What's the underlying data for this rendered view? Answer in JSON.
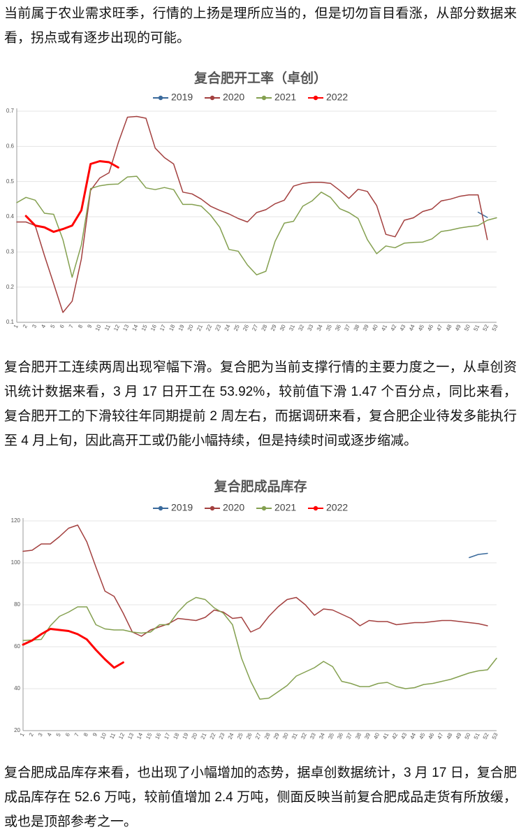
{
  "paragraphs": [
    "当前属于农业需求旺季，行情的上扬是理所应当的，但是切勿盲目看涨，从部分数据来看，拐点或有逐步出现的可能。",
    "复合肥开工连续两周出现窄幅下滑。复合肥为当前支撑行情的主要力度之一，从卓创资讯统计数据来看，3 月 17 日开工在 53.92%，较前值下滑 1.47 个百分点，同比来看，复合肥开工的下滑较往年同期提前 2 周左右，而据调研来看，复合肥企业待发多能执行至 4 月上旬，因此高开工或仍能小幅持续，但是持续时间或逐步缩减。",
    "复合肥成品库存来看，也出现了小幅增加的态势，据卓创数据统计，3 月 17 日，复合肥成品库存在 52.6 万吨，较前值增加 2.4 万吨，侧面反映当前复合肥成品走货有所放缓，或也是顶部参考之一。"
  ],
  "chart_data": [
    {
      "type": "line",
      "title": "复合肥开工率（卓创）",
      "categories": [
        "1",
        "2",
        "3",
        "4",
        "5",
        "6",
        "7",
        "8",
        "9",
        "10",
        "11",
        "12",
        "13",
        "14",
        "15",
        "16",
        "17",
        "18",
        "19",
        "20",
        "21",
        "22",
        "23",
        "24",
        "25",
        "26",
        "27",
        "28",
        "29",
        "30",
        "31",
        "32",
        "33",
        "34",
        "35",
        "36",
        "37",
        "38",
        "39",
        "40",
        "41",
        "42",
        "43",
        "44",
        "45",
        "46",
        "47",
        "48",
        "49",
        "50",
        "51",
        "52",
        "53"
      ],
      "ylim": [
        0.1,
        0.7
      ],
      "yticks": [
        0.1,
        0.2,
        0.3,
        0.4,
        0.5,
        0.6,
        0.7
      ],
      "grid": true,
      "legend": "top",
      "series": [
        {
          "name": "2019",
          "color": "#3a6a9c",
          "values": [
            null,
            null,
            null,
            null,
            null,
            null,
            null,
            null,
            null,
            null,
            null,
            null,
            null,
            null,
            null,
            null,
            null,
            null,
            null,
            null,
            null,
            null,
            null,
            null,
            null,
            null,
            null,
            null,
            null,
            null,
            null,
            null,
            null,
            null,
            null,
            null,
            null,
            null,
            null,
            null,
            null,
            null,
            null,
            null,
            null,
            null,
            null,
            null,
            null,
            null,
            0.413,
            0.398,
            null
          ]
        },
        {
          "name": "2020",
          "color": "#a3403f",
          "values": [
            0.385,
            0.385,
            0.375,
            0.29,
            0.21,
            0.128,
            0.16,
            0.28,
            0.475,
            0.51,
            0.525,
            0.61,
            0.683,
            0.685,
            0.68,
            0.595,
            0.568,
            0.55,
            0.47,
            0.465,
            0.45,
            0.43,
            0.418,
            0.408,
            0.395,
            0.385,
            0.412,
            0.42,
            0.437,
            0.447,
            0.487,
            0.495,
            0.498,
            0.498,
            0.495,
            0.475,
            0.452,
            0.478,
            0.472,
            0.432,
            0.35,
            0.343,
            0.39,
            0.397,
            0.415,
            0.422,
            0.445,
            0.45,
            0.458,
            0.462,
            0.462,
            0.335,
            null
          ]
        },
        {
          "name": "2021",
          "color": "#84a050",
          "values": [
            0.44,
            0.455,
            0.447,
            0.41,
            0.407,
            0.335,
            0.228,
            0.32,
            0.48,
            0.488,
            0.492,
            0.493,
            0.513,
            0.515,
            0.482,
            0.477,
            0.483,
            0.477,
            0.435,
            0.435,
            0.43,
            0.405,
            0.37,
            0.307,
            0.302,
            0.263,
            0.235,
            0.245,
            0.33,
            0.382,
            0.387,
            0.43,
            0.445,
            0.47,
            0.455,
            0.423,
            0.412,
            0.395,
            0.335,
            0.295,
            0.317,
            0.312,
            0.325,
            0.327,
            0.328,
            0.337,
            0.358,
            0.362,
            0.368,
            0.372,
            0.375,
            0.39,
            0.397
          ]
        },
        {
          "name": "2022",
          "color": "#ff0000",
          "values": [
            null,
            0.402,
            0.375,
            0.37,
            0.357,
            0.365,
            0.375,
            0.418,
            0.55,
            0.558,
            0.555,
            0.54,
            null,
            null,
            null,
            null,
            null,
            null,
            null,
            null,
            null,
            null,
            null,
            null,
            null,
            null,
            null,
            null,
            null,
            null,
            null,
            null,
            null,
            null,
            null,
            null,
            null,
            null,
            null,
            null,
            null,
            null,
            null,
            null,
            null,
            null,
            null,
            null,
            null,
            null,
            null,
            null,
            null
          ]
        }
      ]
    },
    {
      "type": "line",
      "title": "复合肥成品库存",
      "categories": [
        "1",
        "2",
        "3",
        "4",
        "5",
        "6",
        "7",
        "8",
        "9",
        "10",
        "11",
        "12",
        "13",
        "14",
        "15",
        "16",
        "17",
        "18",
        "19",
        "20",
        "21",
        "22",
        "23",
        "24",
        "25",
        "26",
        "27",
        "28",
        "29",
        "30",
        "31",
        "32",
        "33",
        "34",
        "35",
        "36",
        "37",
        "38",
        "39",
        "40",
        "41",
        "42",
        "43",
        "44",
        "45",
        "46",
        "47",
        "48",
        "49",
        "50",
        "51",
        "52",
        "53"
      ],
      "ylim": [
        20,
        120
      ],
      "yticks": [
        20,
        40,
        60,
        80,
        100,
        120
      ],
      "grid": true,
      "legend": "top",
      "series": [
        {
          "name": "2019",
          "color": "#3a6a9c",
          "values": [
            null,
            null,
            null,
            null,
            null,
            null,
            null,
            null,
            null,
            null,
            null,
            null,
            null,
            null,
            null,
            null,
            null,
            null,
            null,
            null,
            null,
            null,
            null,
            null,
            null,
            null,
            null,
            null,
            null,
            null,
            null,
            null,
            null,
            null,
            null,
            null,
            null,
            null,
            null,
            null,
            null,
            null,
            null,
            null,
            null,
            null,
            null,
            null,
            null,
            102.5,
            104,
            104.5,
            null
          ]
        },
        {
          "name": "2020",
          "color": "#a3403f",
          "values": [
            105.5,
            106,
            109,
            109,
            112.5,
            116.5,
            118,
            110,
            98,
            86.5,
            84,
            76,
            67,
            65,
            68,
            69.5,
            71,
            73.5,
            73,
            72.5,
            74,
            77.5,
            76.5,
            73.5,
            74,
            67,
            69,
            74.5,
            79,
            82.5,
            83.5,
            80,
            75,
            78,
            77.5,
            75.5,
            73.5,
            70,
            72.5,
            72,
            72,
            70.5,
            71,
            71.5,
            71.5,
            72,
            72.5,
            72.5,
            72,
            71.5,
            71,
            70,
            null
          ]
        },
        {
          "name": "2021",
          "color": "#84a050",
          "values": [
            63,
            63.2,
            63.5,
            70,
            74.5,
            76.5,
            79,
            79,
            70.5,
            68.5,
            68,
            68,
            67,
            66.5,
            67,
            70.5,
            70.5,
            76.5,
            81,
            83.5,
            82.5,
            78.5,
            76,
            70.5,
            54.5,
            43.5,
            35,
            35.5,
            38.5,
            41.5,
            46,
            48,
            50,
            53,
            50.5,
            43.5,
            42.5,
            41,
            41,
            42.5,
            43,
            41,
            40,
            40.5,
            42,
            42.5,
            43.5,
            44.5,
            46,
            47.5,
            48.5,
            49,
            54.5
          ]
        },
        {
          "name": "2022",
          "color": "#ff0000",
          "values": [
            61,
            63,
            66,
            68.5,
            68,
            67.5,
            66,
            63.5,
            58.5,
            54,
            50,
            52.5,
            null,
            null,
            null,
            null,
            null,
            null,
            null,
            null,
            null,
            null,
            null,
            null,
            null,
            null,
            null,
            null,
            null,
            null,
            null,
            null,
            null,
            null,
            null,
            null,
            null,
            null,
            null,
            null,
            null,
            null,
            null,
            null,
            null,
            null,
            null,
            null,
            null,
            null,
            null,
            null,
            null
          ]
        }
      ]
    }
  ]
}
